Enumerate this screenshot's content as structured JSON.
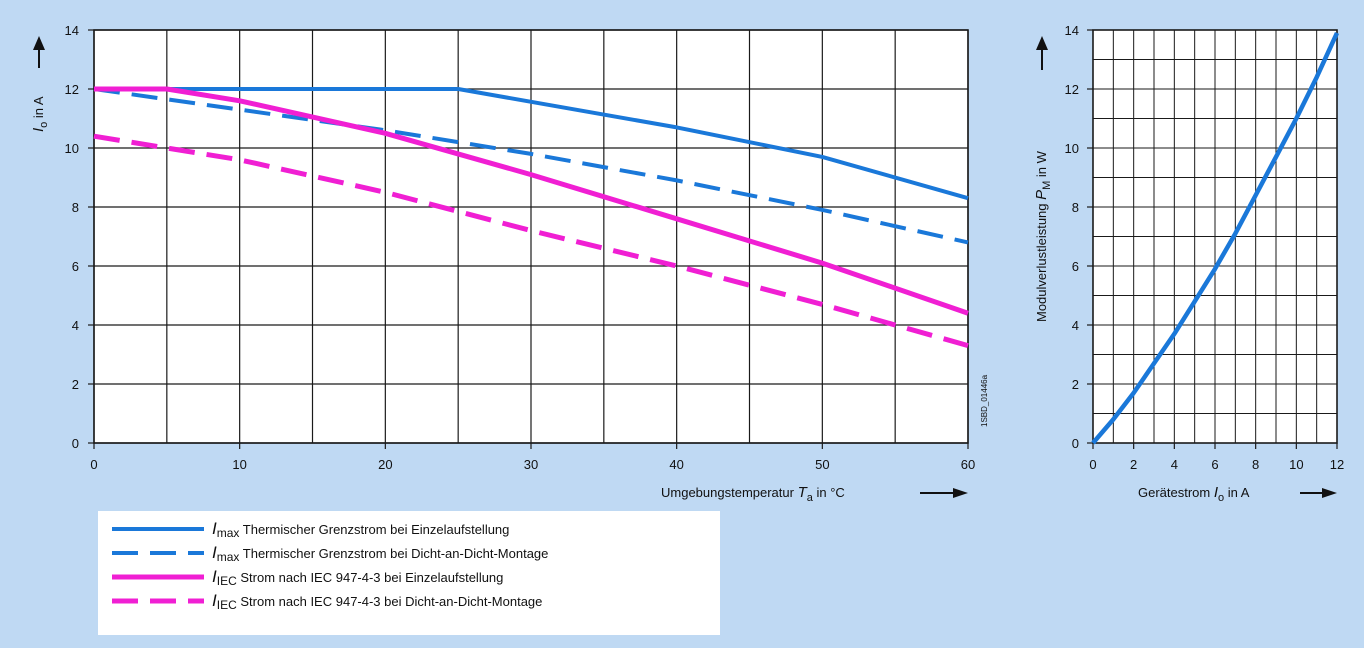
{
  "colors": {
    "blue": "#1a78d9",
    "magenta": "#f01fd3",
    "grid": "#1a1a1a",
    "panel": "#ffffff",
    "background": "#bfd9f3"
  },
  "chart_data": [
    {
      "type": "line",
      "xlim": [
        0,
        60
      ],
      "ylim": [
        0,
        14
      ],
      "xticks": [
        "0",
        "10",
        "20",
        "30",
        "40",
        "50",
        "60"
      ],
      "yticks": [
        "0",
        "2",
        "4",
        "6",
        "8",
        "10",
        "12",
        "14"
      ],
      "xlabel": {
        "main": "Umgebungstemperatur",
        "symbol": "T",
        "sub": "a",
        "unit": "in °C"
      },
      "ylabel": {
        "symbol": "I",
        "sub": "o",
        "unit": "in A"
      },
      "side_code": "1SBD_01446a",
      "grid": true,
      "series": [
        {
          "key": "imax_single",
          "color": "blue",
          "dash": false,
          "x": [
            0,
            5,
            25,
            40,
            50,
            60
          ],
          "y": [
            12.0,
            12.0,
            12.0,
            10.7,
            9.7,
            8.3
          ]
        },
        {
          "key": "imax_dense",
          "color": "blue",
          "dash": true,
          "x": [
            0,
            10,
            20,
            30,
            40,
            50,
            60
          ],
          "y": [
            12.0,
            11.3,
            10.6,
            9.8,
            8.9,
            7.9,
            6.8
          ]
        },
        {
          "key": "iec_single",
          "color": "magenta",
          "dash": false,
          "x": [
            0,
            5,
            10,
            20,
            30,
            40,
            50,
            60
          ],
          "y": [
            12.0,
            12.0,
            11.6,
            10.5,
            9.1,
            7.6,
            6.1,
            4.4
          ]
        },
        {
          "key": "iec_dense",
          "color": "magenta",
          "dash": true,
          "x": [
            0,
            10,
            20,
            30,
            40,
            50,
            60
          ],
          "y": [
            10.4,
            9.6,
            8.5,
            7.2,
            6.0,
            4.7,
            3.3
          ]
        }
      ],
      "legend": [
        {
          "series": "imax_single",
          "symbol": "I",
          "sub": "max",
          "text": "Thermischer Grenzstrom bei Einzelaufstellung"
        },
        {
          "series": "imax_dense",
          "symbol": "I",
          "sub": "max",
          "text": "Thermischer Grenzstrom bei Dicht-an-Dicht-Montage"
        },
        {
          "series": "iec_single",
          "symbol": "I",
          "sub": "IEC",
          "text": "Strom nach IEC 947-4-3 bei Einzelaufstellung"
        },
        {
          "series": "iec_dense",
          "symbol": "I",
          "sub": "IEC",
          "text": "Strom nach IEC 947-4-3 bei Dicht-an-Dicht-Montage"
        }
      ]
    },
    {
      "type": "line",
      "xlim": [
        0,
        12
      ],
      "ylim": [
        0,
        14
      ],
      "xticks": [
        "0",
        "2",
        "4",
        "6",
        "8",
        "10",
        "12"
      ],
      "yticks": [
        "0",
        "2",
        "4",
        "6",
        "8",
        "10",
        "12",
        "14"
      ],
      "xlabel": {
        "main": "Gerätestrom",
        "symbol": "I",
        "sub": "o",
        "unit": "in A"
      },
      "ylabel": {
        "main": "Modulverlustleistung",
        "symbol": "P",
        "sub": "M",
        "unit": "in W"
      },
      "grid": true,
      "series": [
        {
          "key": "power_loss",
          "color": "blue",
          "dash": false,
          "x": [
            0,
            1,
            2,
            3,
            4,
            5,
            6,
            7,
            8,
            9,
            10,
            11,
            12
          ],
          "y": [
            0,
            0.8,
            1.7,
            2.7,
            3.7,
            4.8,
            5.9,
            7.1,
            8.4,
            9.7,
            11.0,
            12.4,
            13.9
          ]
        }
      ]
    }
  ]
}
